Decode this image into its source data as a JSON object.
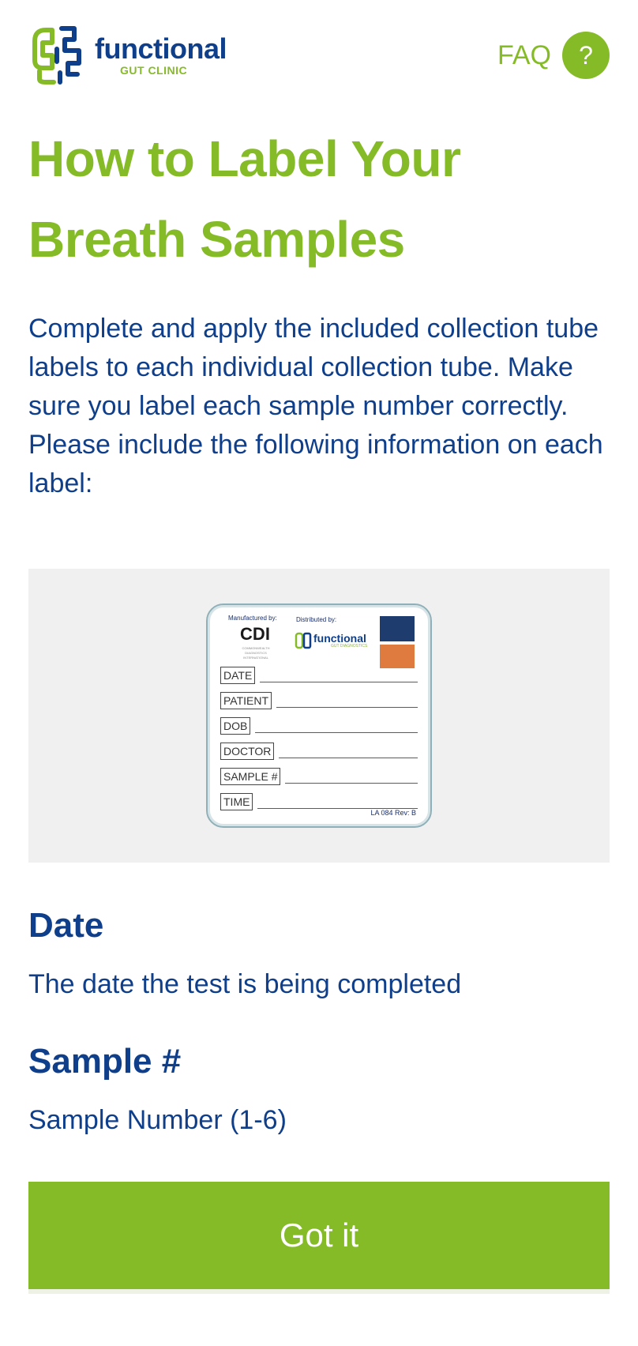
{
  "header": {
    "logo_word": "functional",
    "logo_sub": "GUT CLINIC",
    "faq_label": "FAQ",
    "faq_icon": "?"
  },
  "colors": {
    "brand_green": "#86bb28",
    "brand_navy": "#0f3f8a",
    "panel_bg": "#f0f0f0"
  },
  "page": {
    "title_line1": "How to Label Your",
    "title_line2": "Breath Samples",
    "intro": "Complete and apply the included collection tube labels to each individual collection tube. Make sure you label each sample number correctly. Please include the following information on each label:"
  },
  "label_image": {
    "manufactured_by": "Manufactured by:",
    "distributed_by": "Distributed by:",
    "cdi_sub": "COMMONWEALTH DIAGNOSTICS INTERNATIONAL",
    "fgd_word": "functional",
    "fgd_sub": "GUT DIAGNOSTICS",
    "fields": [
      "DATE",
      "PATIENT",
      "DOB",
      "DOCTOR",
      "SAMPLE #",
      "TIME"
    ],
    "revision": "LA 084 Rev: B"
  },
  "sections": [
    {
      "heading": "Date",
      "text": "The date the test is being completed"
    },
    {
      "heading": "Sample #",
      "text": "Sample Number (1-6)"
    }
  ],
  "button": {
    "label": "Got it"
  }
}
